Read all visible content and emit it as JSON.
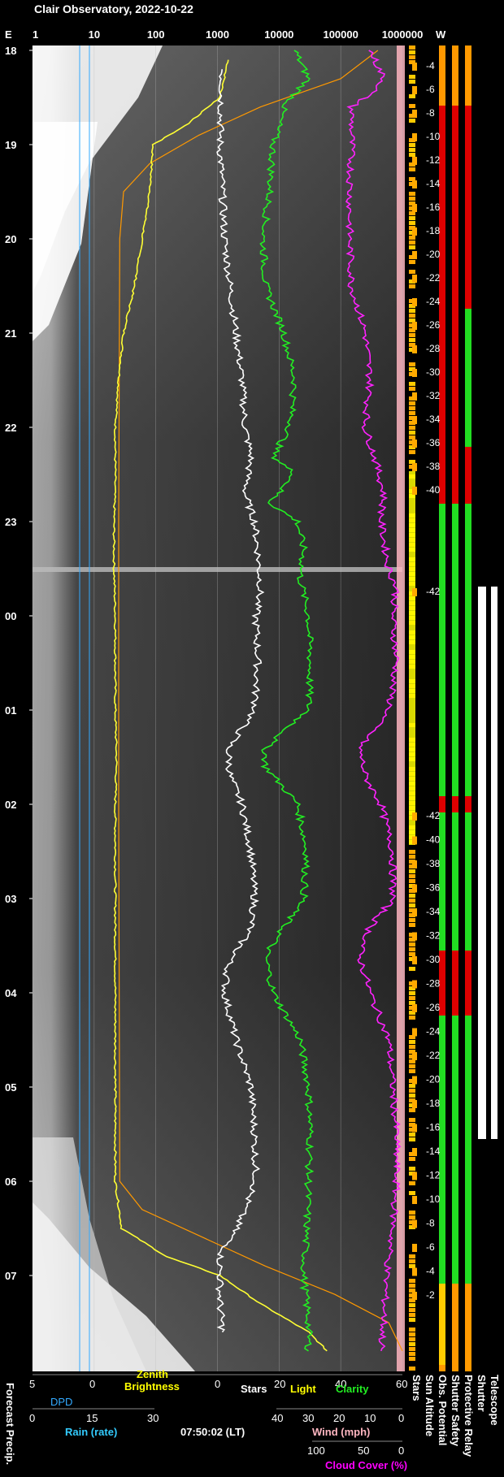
{
  "title": "Clair Observatory, 2022-10-22",
  "timestamp": "07:50:02 (LT)",
  "top_axis": {
    "left_letter": "E",
    "right_letter": "W",
    "ticks": [
      "1",
      "10",
      "100",
      "1000",
      "10000",
      "100000",
      "1000000"
    ]
  },
  "hour_labels": [
    "18",
    "19",
    "20",
    "21",
    "22",
    "23",
    "00",
    "01",
    "02",
    "03",
    "04",
    "05",
    "06",
    "07"
  ],
  "sun_altitude_labels": {
    "evening": [
      "-4",
      "-6",
      "-8",
      "-10",
      "-12",
      "-14",
      "-16",
      "-18",
      "-20",
      "-22",
      "-24",
      "-26",
      "-28",
      "-30",
      "-32",
      "-34",
      "-36",
      "-38",
      "-40",
      "-42"
    ],
    "morning": [
      "-42",
      "-40",
      "-38",
      "-36",
      "-34",
      "-32",
      "-30",
      "-28",
      "-26",
      "-24",
      "-22",
      "-20",
      "-18",
      "-16",
      "-14",
      "-12",
      "-10",
      "-8",
      "-6",
      "-4",
      "-2"
    ]
  },
  "bottom_axes": {
    "dpd": {
      "label": "DPD",
      "ticks": [
        "5",
        "0"
      ],
      "color": "#33aaff"
    },
    "zenith": {
      "label1": "Zenith",
      "label2": "Brightness",
      "color": "#ffff00"
    },
    "stars_light": {
      "ticks": [
        "0",
        "20",
        "40",
        "60"
      ],
      "stars": "Stars",
      "light": "Light",
      "clarity": "Clarity"
    },
    "rain": {
      "label": "Rain (rate)",
      "ticks": [
        "0",
        "15",
        "30"
      ],
      "color": "#33ccff"
    },
    "wind": {
      "label": "Wind (mph)",
      "ticks": [
        "40",
        "30",
        "20",
        "10",
        "0"
      ],
      "color": "#ffb6c1"
    },
    "cloud": {
      "label": "Cloud Cover (%)",
      "ticks": [
        "100",
        "50",
        "0"
      ],
      "color": "#ff00ff"
    }
  },
  "vertical_labels": {
    "forecast": "Forecast Precip.",
    "stars": "Stars",
    "sun_alt": "Sun Altitude",
    "obs": "Obs. Potential",
    "shutter_safety": "Shutter Safety",
    "protective_relay": "Protective Relay",
    "shutter": "Shutter",
    "telescope": "Telescope"
  },
  "chart_data": {
    "type": "line",
    "title": "Clair Observatory, 2022-10-22",
    "x_axis": "log scale 1 to 1000000",
    "y_axis": "local time 18:00 to 07:50",
    "series": [
      {
        "name": "Zenith Brightness",
        "color": "#ffff33",
        "points": [
          [
            18.1,
            1500
          ],
          [
            18.5,
            1100
          ],
          [
            18.8,
            300
          ],
          [
            19.0,
            90
          ],
          [
            19.5,
            80
          ],
          [
            20.0,
            60
          ],
          [
            20.5,
            45
          ],
          [
            21.0,
            30
          ],
          [
            21.5,
            25
          ],
          [
            22.0,
            22
          ],
          [
            22.5,
            22
          ],
          [
            23.0,
            21
          ],
          [
            23.5,
            21
          ],
          [
            0.0,
            22
          ],
          [
            0.5,
            22
          ],
          [
            1.0,
            22
          ],
          [
            1.5,
            23
          ],
          [
            2.0,
            22
          ],
          [
            3.0,
            22
          ],
          [
            4.0,
            22
          ],
          [
            5.0,
            22
          ],
          [
            6.0,
            22
          ],
          [
            6.5,
            28
          ],
          [
            6.8,
            150
          ],
          [
            7.0,
            1100
          ],
          [
            7.3,
            5000
          ],
          [
            7.6,
            30000
          ],
          [
            7.8,
            60000
          ]
        ]
      },
      {
        "name": "Stars",
        "color": "#ffffff",
        "points": [
          [
            18.2,
            1200
          ],
          [
            19.0,
            1100
          ],
          [
            19.5,
            1200
          ],
          [
            20.0,
            1300
          ],
          [
            20.5,
            1600
          ],
          [
            21.0,
            2000
          ],
          [
            21.5,
            2500
          ],
          [
            22.0,
            2800
          ],
          [
            22.3,
            3500
          ],
          [
            22.7,
            2800
          ],
          [
            23.0,
            4000
          ],
          [
            23.3,
            4500
          ],
          [
            23.7,
            5000
          ],
          [
            0.0,
            4200
          ],
          [
            0.5,
            4500
          ],
          [
            1.0,
            4000
          ],
          [
            1.4,
            1500
          ],
          [
            1.7,
            1600
          ],
          [
            2.0,
            2500
          ],
          [
            2.5,
            3500
          ],
          [
            3.0,
            4000
          ],
          [
            3.3,
            3500
          ],
          [
            3.7,
            1500
          ],
          [
            4.0,
            1300
          ],
          [
            4.5,
            2000
          ],
          [
            5.0,
            3500
          ],
          [
            5.5,
            4000
          ],
          [
            6.0,
            4200
          ],
          [
            6.5,
            2000
          ],
          [
            6.8,
            1100
          ],
          [
            7.3,
            1100
          ],
          [
            7.6,
            1200
          ]
        ]
      },
      {
        "name": "Clarity",
        "color": "#22ee22",
        "points": [
          [
            18.0,
            18000
          ],
          [
            18.3,
            30000
          ],
          [
            18.6,
            12000
          ],
          [
            19.0,
            8000
          ],
          [
            19.5,
            7000
          ],
          [
            20.0,
            5500
          ],
          [
            20.5,
            6000
          ],
          [
            21.0,
            12000
          ],
          [
            21.5,
            18000
          ],
          [
            22.0,
            15000
          ],
          [
            22.3,
            8000
          ],
          [
            22.5,
            18000
          ],
          [
            22.8,
            7000
          ],
          [
            23.0,
            20000
          ],
          [
            23.3,
            25000
          ],
          [
            23.6,
            22000
          ],
          [
            0.0,
            30000
          ],
          [
            0.5,
            32000
          ],
          [
            1.0,
            30000
          ],
          [
            1.4,
            6000
          ],
          [
            1.6,
            6000
          ],
          [
            2.0,
            20000
          ],
          [
            2.5,
            28000
          ],
          [
            3.0,
            25000
          ],
          [
            3.3,
            12000
          ],
          [
            3.6,
            6000
          ],
          [
            4.0,
            8000
          ],
          [
            4.5,
            22000
          ],
          [
            5.0,
            30000
          ],
          [
            5.5,
            32000
          ],
          [
            6.0,
            30000
          ],
          [
            6.5,
            28000
          ],
          [
            7.0,
            25000
          ],
          [
            7.5,
            30000
          ],
          [
            7.8,
            30000
          ]
        ]
      },
      {
        "name": "Cloud Cover",
        "color": "#ff22ff",
        "points": [
          [
            18.0,
            300000
          ],
          [
            18.3,
            500000
          ],
          [
            18.4,
            400000
          ],
          [
            18.6,
            150000
          ],
          [
            19.0,
            150000
          ],
          [
            19.5,
            140000
          ],
          [
            20.0,
            140000
          ],
          [
            20.5,
            150000
          ],
          [
            21.0,
            250000
          ],
          [
            21.5,
            300000
          ],
          [
            22.0,
            250000
          ],
          [
            22.3,
            350000
          ],
          [
            22.7,
            500000
          ],
          [
            23.0,
            450000
          ],
          [
            23.5,
            600000
          ],
          [
            23.7,
            800000
          ],
          [
            0.0,
            700000
          ],
          [
            0.5,
            800000
          ],
          [
            1.0,
            600000
          ],
          [
            1.4,
            200000
          ],
          [
            1.7,
            250000
          ],
          [
            2.0,
            450000
          ],
          [
            2.5,
            700000
          ],
          [
            3.0,
            700000
          ],
          [
            3.3,
            300000
          ],
          [
            3.6,
            200000
          ],
          [
            4.0,
            300000
          ],
          [
            4.5,
            600000
          ],
          [
            5.0,
            700000
          ],
          [
            5.5,
            800000
          ],
          [
            6.0,
            800000
          ],
          [
            6.5,
            700000
          ],
          [
            7.0,
            550000
          ],
          [
            7.5,
            500000
          ],
          [
            7.8,
            450000
          ]
        ]
      }
    ]
  }
}
